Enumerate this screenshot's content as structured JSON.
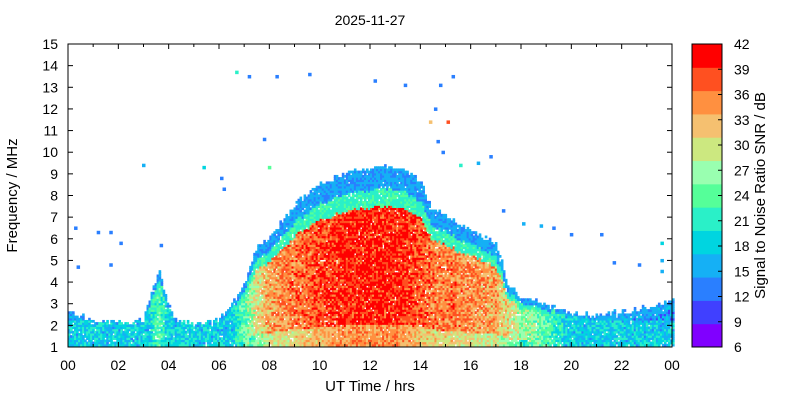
{
  "chart_data": {
    "type": "heatmap",
    "title": "2025-11-27",
    "xlabel": "UT Time / hrs",
    "ylabel": "Frequency / MHz",
    "xlim": [
      0,
      24
    ],
    "ylim": [
      1,
      15
    ],
    "x_ticks": [
      "00",
      "02",
      "04",
      "06",
      "08",
      "10",
      "12",
      "14",
      "16",
      "18",
      "20",
      "22",
      "00"
    ],
    "y_ticks": [
      "1",
      "2",
      "3",
      "4",
      "5",
      "6",
      "7",
      "8",
      "9",
      "10",
      "11",
      "12",
      "13",
      "14",
      "15"
    ],
    "colorbar": {
      "label": "Signal to Noise Ratio SNR / dB",
      "ticks": [
        "6",
        "9",
        "12",
        "15",
        "18",
        "21",
        "24",
        "27",
        "30",
        "33",
        "36",
        "39",
        "42"
      ],
      "range": [
        6,
        42
      ],
      "colors": [
        "#8000ff",
        "#4040ff",
        "#2a7fff",
        "#15b0f5",
        "#00d5e0",
        "#2af0c8",
        "#55ff99",
        "#99ffb0",
        "#cce880",
        "#f5c070",
        "#ff9040",
        "#ff5020",
        "#ff0000"
      ]
    },
    "envelope": [
      {
        "t": 0.0,
        "fmax": 2.6,
        "snr": 14
      },
      {
        "t": 1.0,
        "fmax": 2.2,
        "snr": 14
      },
      {
        "t": 2.0,
        "fmax": 2.1,
        "snr": 14
      },
      {
        "t": 3.0,
        "fmax": 2.2,
        "snr": 16
      },
      {
        "t": 3.6,
        "fmax": 4.5,
        "snr": 24
      },
      {
        "t": 4.2,
        "fmax": 2.3,
        "snr": 15
      },
      {
        "t": 5.0,
        "fmax": 2.0,
        "snr": 14
      },
      {
        "t": 6.0,
        "fmax": 2.2,
        "snr": 15
      },
      {
        "t": 6.5,
        "fmax": 2.9,
        "snr": 18
      },
      {
        "t": 7.0,
        "fmax": 3.8,
        "snr": 24
      },
      {
        "t": 7.5,
        "fmax": 5.5,
        "snr": 30
      },
      {
        "t": 8.0,
        "fmax": 6.0,
        "snr": 34
      },
      {
        "t": 9.0,
        "fmax": 7.5,
        "snr": 36
      },
      {
        "t": 10.0,
        "fmax": 8.5,
        "snr": 38
      },
      {
        "t": 11.0,
        "fmax": 9.0,
        "snr": 40
      },
      {
        "t": 12.0,
        "fmax": 9.2,
        "snr": 40
      },
      {
        "t": 13.0,
        "fmax": 9.3,
        "snr": 40
      },
      {
        "t": 14.0,
        "fmax": 8.6,
        "snr": 38
      },
      {
        "t": 14.5,
        "fmax": 7.3,
        "snr": 36
      },
      {
        "t": 15.0,
        "fmax": 7.0,
        "snr": 36
      },
      {
        "t": 16.0,
        "fmax": 6.3,
        "snr": 35
      },
      {
        "t": 17.0,
        "fmax": 5.8,
        "snr": 34
      },
      {
        "t": 17.5,
        "fmax": 3.8,
        "snr": 30
      },
      {
        "t": 18.0,
        "fmax": 3.3,
        "snr": 27
      },
      {
        "t": 19.0,
        "fmax": 2.9,
        "snr": 24
      },
      {
        "t": 20.0,
        "fmax": 2.5,
        "snr": 18
      },
      {
        "t": 21.0,
        "fmax": 2.4,
        "snr": 15
      },
      {
        "t": 22.0,
        "fmax": 2.6,
        "snr": 14
      },
      {
        "t": 23.0,
        "fmax": 2.8,
        "snr": 14
      },
      {
        "t": 24.0,
        "fmax": 3.1,
        "snr": 14
      }
    ],
    "sporadic_points": [
      {
        "t": 6.7,
        "f": 13.7,
        "snr": 20
      },
      {
        "t": 7.2,
        "f": 13.5,
        "snr": 14
      },
      {
        "t": 8.3,
        "f": 13.5,
        "snr": 14
      },
      {
        "t": 9.6,
        "f": 13.6,
        "snr": 14
      },
      {
        "t": 12.2,
        "f": 13.3,
        "snr": 14
      },
      {
        "t": 13.4,
        "f": 13.1,
        "snr": 14
      },
      {
        "t": 14.8,
        "f": 13.1,
        "snr": 14
      },
      {
        "t": 15.3,
        "f": 13.5,
        "snr": 14
      },
      {
        "t": 14.6,
        "f": 12.0,
        "snr": 14
      },
      {
        "t": 14.4,
        "f": 11.4,
        "snr": 33
      },
      {
        "t": 15.1,
        "f": 11.4,
        "snr": 38
      },
      {
        "t": 7.8,
        "f": 10.6,
        "snr": 14
      },
      {
        "t": 14.7,
        "f": 10.5,
        "snr": 14
      },
      {
        "t": 14.9,
        "f": 10.0,
        "snr": 14
      },
      {
        "t": 3.0,
        "f": 9.4,
        "snr": 15
      },
      {
        "t": 5.4,
        "f": 9.3,
        "snr": 18
      },
      {
        "t": 8.0,
        "f": 9.3,
        "snr": 24
      },
      {
        "t": 15.6,
        "f": 9.4,
        "snr": 20
      },
      {
        "t": 16.3,
        "f": 9.5,
        "snr": 16
      },
      {
        "t": 16.8,
        "f": 9.8,
        "snr": 14
      },
      {
        "t": 6.1,
        "f": 8.8,
        "snr": 14
      },
      {
        "t": 6.2,
        "f": 8.3,
        "snr": 14
      },
      {
        "t": 17.3,
        "f": 7.3,
        "snr": 14
      },
      {
        "t": 18.1,
        "f": 6.7,
        "snr": 16
      },
      {
        "t": 18.8,
        "f": 6.6,
        "snr": 15
      },
      {
        "t": 19.3,
        "f": 6.5,
        "snr": 14
      },
      {
        "t": 0.3,
        "f": 6.5,
        "snr": 14
      },
      {
        "t": 1.2,
        "f": 6.3,
        "snr": 14
      },
      {
        "t": 1.7,
        "f": 6.3,
        "snr": 14
      },
      {
        "t": 2.1,
        "f": 5.8,
        "snr": 14
      },
      {
        "t": 3.7,
        "f": 5.7,
        "snr": 14
      },
      {
        "t": 0.4,
        "f": 4.7,
        "snr": 14
      },
      {
        "t": 1.7,
        "f": 4.8,
        "snr": 14
      },
      {
        "t": 21.2,
        "f": 6.2,
        "snr": 14
      },
      {
        "t": 20.0,
        "f": 6.2,
        "snr": 14
      },
      {
        "t": 21.7,
        "f": 4.9,
        "snr": 14
      },
      {
        "t": 22.7,
        "f": 4.8,
        "snr": 14
      },
      {
        "t": 23.6,
        "f": 5.8,
        "snr": 18
      },
      {
        "t": 23.6,
        "f": 5.0,
        "snr": 16
      },
      {
        "t": 23.6,
        "f": 4.5,
        "snr": 16
      }
    ]
  }
}
